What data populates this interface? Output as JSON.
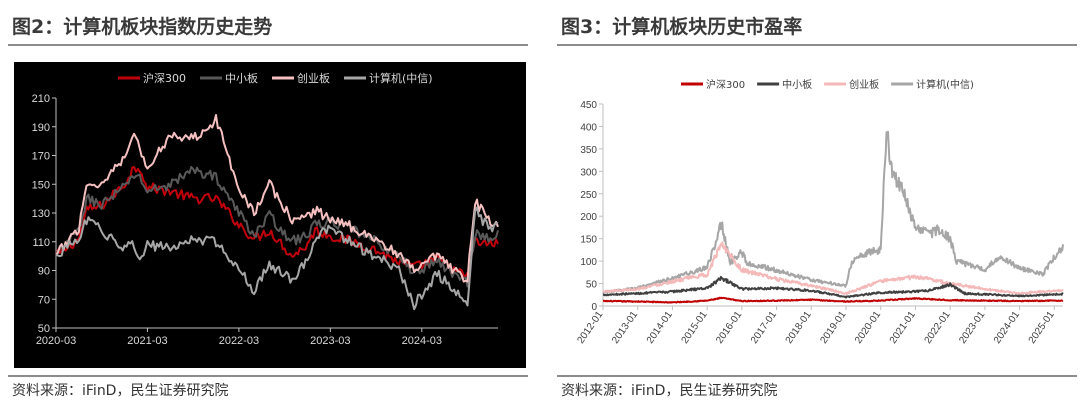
{
  "figures": [
    {
      "title": "图2：计算机板块指数历史走势",
      "source": "资料来源：iFinD，民生证券研究院"
    },
    {
      "title": "图3：计算机板块历史市盈率",
      "source": "资料来源：iFinD，民生证券研究院"
    }
  ],
  "chart_data": [
    {
      "type": "line",
      "background": "#000000",
      "legend_position": "top",
      "ylim": [
        50,
        210
      ],
      "yticks": [
        50,
        70,
        90,
        110,
        130,
        150,
        170,
        190,
        210
      ],
      "xticks": [
        "2020-03",
        "2021-03",
        "2022-03",
        "2023-03",
        "2024-03"
      ],
      "x_range": [
        "2020-03",
        "2025-01"
      ],
      "grid": false,
      "series": [
        {
          "name": "沪深300",
          "color": "#c0000b",
          "points": [
            [
              "2020-03",
              100
            ],
            [
              "2020-06",
              112
            ],
            [
              "2020-07",
              132
            ],
            [
              "2020-09",
              135
            ],
            [
              "2020-12",
              150
            ],
            [
              "2021-01",
              160
            ],
            [
              "2021-02",
              162
            ],
            [
              "2021-03",
              148
            ],
            [
              "2021-06",
              145
            ],
            [
              "2021-09",
              140
            ],
            [
              "2021-12",
              140
            ],
            [
              "2022-03",
              122
            ],
            [
              "2022-05",
              112
            ],
            [
              "2022-07",
              118
            ],
            [
              "2022-10",
              100
            ],
            [
              "2022-12",
              108
            ],
            [
              "2023-01",
              118
            ],
            [
              "2023-03",
              114
            ],
            [
              "2023-06",
              110
            ],
            [
              "2023-09",
              104
            ],
            [
              "2023-12",
              96
            ],
            [
              "2024-02",
              92
            ],
            [
              "2024-05",
              98
            ],
            [
              "2024-08",
              88
            ],
            [
              "2024-09",
              86
            ],
            [
              "2024-10",
              110
            ],
            [
              "2024-12",
              108
            ],
            [
              "2025-01",
              110
            ]
          ]
        },
        {
          "name": "中小板",
          "color": "#595959",
          "points": [
            [
              "2020-03",
              100
            ],
            [
              "2020-06",
              118
            ],
            [
              "2020-07",
              140
            ],
            [
              "2020-09",
              136
            ],
            [
              "2020-12",
              148
            ],
            [
              "2021-01",
              156
            ],
            [
              "2021-02",
              155
            ],
            [
              "2021-03",
              145
            ],
            [
              "2021-06",
              150
            ],
            [
              "2021-09",
              160
            ],
            [
              "2021-12",
              155
            ],
            [
              "2022-03",
              130
            ],
            [
              "2022-05",
              115
            ],
            [
              "2022-07",
              128
            ],
            [
              "2022-10",
              110
            ],
            [
              "2022-12",
              115
            ],
            [
              "2023-01",
              122
            ],
            [
              "2023-03",
              124
            ],
            [
              "2023-06",
              118
            ],
            [
              "2023-09",
              110
            ],
            [
              "2023-12",
              100
            ],
            [
              "2024-02",
              88
            ],
            [
              "2024-05",
              97
            ],
            [
              "2024-08",
              84
            ],
            [
              "2024-09",
              82
            ],
            [
              "2024-10",
              116
            ],
            [
              "2024-12",
              112
            ],
            [
              "2025-01",
              115
            ]
          ]
        },
        {
          "name": "创业板",
          "color": "#f5c0c0",
          "points": [
            [
              "2020-03",
              100
            ],
            [
              "2020-06",
              120
            ],
            [
              "2020-07",
              150
            ],
            [
              "2020-09",
              150
            ],
            [
              "2020-12",
              170
            ],
            [
              "2021-01",
              185
            ],
            [
              "2021-02",
              175
            ],
            [
              "2021-03",
              160
            ],
            [
              "2021-06",
              185
            ],
            [
              "2021-09",
              182
            ],
            [
              "2021-12",
              195
            ],
            [
              "2022-03",
              148
            ],
            [
              "2022-05",
              130
            ],
            [
              "2022-07",
              150
            ],
            [
              "2022-10",
              125
            ],
            [
              "2022-12",
              128
            ],
            [
              "2023-01",
              132
            ],
            [
              "2023-03",
              126
            ],
            [
              "2023-06",
              120
            ],
            [
              "2023-09",
              112
            ],
            [
              "2023-12",
              100
            ],
            [
              "2024-02",
              90
            ],
            [
              "2024-05",
              100
            ],
            [
              "2024-08",
              86
            ],
            [
              "2024-09",
              84
            ],
            [
              "2024-10",
              138
            ],
            [
              "2024-12",
              124
            ],
            [
              "2025-01",
              120
            ]
          ]
        },
        {
          "name": "计算机(中信)",
          "color": "#a6a6a6",
          "points": [
            [
              "2020-03",
              100
            ],
            [
              "2020-06",
              112
            ],
            [
              "2020-07",
              125
            ],
            [
              "2020-09",
              118
            ],
            [
              "2020-12",
              105
            ],
            [
              "2021-01",
              108
            ],
            [
              "2021-02",
              100
            ],
            [
              "2021-03",
              108
            ],
            [
              "2021-06",
              105
            ],
            [
              "2021-09",
              112
            ],
            [
              "2021-12",
              110
            ],
            [
              "2022-03",
              92
            ],
            [
              "2022-05",
              76
            ],
            [
              "2022-07",
              94
            ],
            [
              "2022-10",
              84
            ],
            [
              "2022-12",
              98
            ],
            [
              "2023-01",
              112
            ],
            [
              "2023-03",
              120
            ],
            [
              "2023-06",
              108
            ],
            [
              "2023-09",
              100
            ],
            [
              "2023-12",
              90
            ],
            [
              "2024-02",
              66
            ],
            [
              "2024-05",
              88
            ],
            [
              "2024-08",
              72
            ],
            [
              "2024-09",
              66
            ],
            [
              "2024-10",
              132
            ],
            [
              "2024-12",
              118
            ],
            [
              "2025-01",
              125
            ]
          ]
        }
      ]
    },
    {
      "type": "line",
      "background": "#ffffff",
      "legend_position": "top",
      "ylim": [
        0,
        450
      ],
      "yticks": [
        0,
        50,
        100,
        150,
        200,
        250,
        300,
        350,
        400,
        450
      ],
      "xticks": [
        "2012-01",
        "2013-01",
        "2014-01",
        "2015-01",
        "2016-01",
        "2017-01",
        "2018-01",
        "2019-01",
        "2020-01",
        "2021-01",
        "2022-01",
        "2023-01",
        "2024-01",
        "2025-01"
      ],
      "x_range": [
        "2012-01",
        "2025-04"
      ],
      "grid": false,
      "series": [
        {
          "name": "沪深300",
          "color": "#c00000",
          "points": [
            [
              "2012-01",
              11
            ],
            [
              "2013-01",
              10
            ],
            [
              "2014-01",
              8
            ],
            [
              "2015-01",
              12
            ],
            [
              "2015-06",
              18
            ],
            [
              "2016-01",
              11
            ],
            [
              "2017-01",
              12
            ],
            [
              "2018-01",
              14
            ],
            [
              "2019-01",
              10
            ],
            [
              "2020-01",
              12
            ],
            [
              "2021-01",
              17
            ],
            [
              "2022-01",
              13
            ],
            [
              "2023-01",
              12
            ],
            [
              "2024-01",
              11
            ],
            [
              "2025-01",
              12
            ],
            [
              "2025-04",
              12
            ]
          ]
        },
        {
          "name": "中小板",
          "color": "#404040",
          "points": [
            [
              "2012-01",
              25
            ],
            [
              "2013-01",
              28
            ],
            [
              "2014-01",
              32
            ],
            [
              "2015-01",
              40
            ],
            [
              "2015-06",
              62
            ],
            [
              "2016-01",
              38
            ],
            [
              "2017-01",
              40
            ],
            [
              "2018-01",
              34
            ],
            [
              "2019-01",
              20
            ],
            [
              "2020-01",
              30
            ],
            [
              "2021-01",
              32
            ],
            [
              "2021-06",
              35
            ],
            [
              "2022-01",
              48
            ],
            [
              "2022-06",
              28
            ],
            [
              "2023-01",
              26
            ],
            [
              "2024-01",
              22
            ],
            [
              "2025-01",
              26
            ],
            [
              "2025-04",
              27
            ]
          ]
        },
        {
          "name": "创业板",
          "color": "#f4b8b8",
          "points": [
            [
              "2012-01",
              32
            ],
            [
              "2013-01",
              38
            ],
            [
              "2014-01",
              55
            ],
            [
              "2015-01",
              70
            ],
            [
              "2015-06",
              140
            ],
            [
              "2016-01",
              80
            ],
            [
              "2017-01",
              60
            ],
            [
              "2018-01",
              45
            ],
            [
              "2019-01",
              28
            ],
            [
              "2020-01",
              55
            ],
            [
              "2021-01",
              65
            ],
            [
              "2021-06",
              60
            ],
            [
              "2022-01",
              50
            ],
            [
              "2023-01",
              38
            ],
            [
              "2024-01",
              28
            ],
            [
              "2025-01",
              34
            ],
            [
              "2025-04",
              35
            ]
          ]
        },
        {
          "name": "计算机(中信)",
          "color": "#a6a6a6",
          "points": [
            [
              "2012-01",
              30
            ],
            [
              "2013-01",
              40
            ],
            [
              "2014-01",
              62
            ],
            [
              "2015-01",
              85
            ],
            [
              "2015-06",
              185
            ],
            [
              "2015-09",
              95
            ],
            [
              "2016-01",
              120
            ],
            [
              "2016-03",
              95
            ],
            [
              "2017-01",
              80
            ],
            [
              "2018-01",
              58
            ],
            [
              "2019-01",
              45
            ],
            [
              "2019-03",
              100
            ],
            [
              "2019-09",
              120
            ],
            [
              "2020-01",
              125
            ],
            [
              "2020-03",
              390
            ],
            [
              "2020-05",
              300
            ],
            [
              "2020-09",
              250
            ],
            [
              "2021-01",
              175
            ],
            [
              "2021-06",
              160
            ],
            [
              "2021-09",
              170
            ],
            [
              "2022-01",
              150
            ],
            [
              "2022-03",
              100
            ],
            [
              "2023-01",
              80
            ],
            [
              "2023-06",
              110
            ],
            [
              "2024-01",
              85
            ],
            [
              "2024-06",
              75
            ],
            [
              "2024-09",
              70
            ],
            [
              "2025-01",
              110
            ],
            [
              "2025-04",
              130
            ]
          ]
        }
      ]
    }
  ]
}
